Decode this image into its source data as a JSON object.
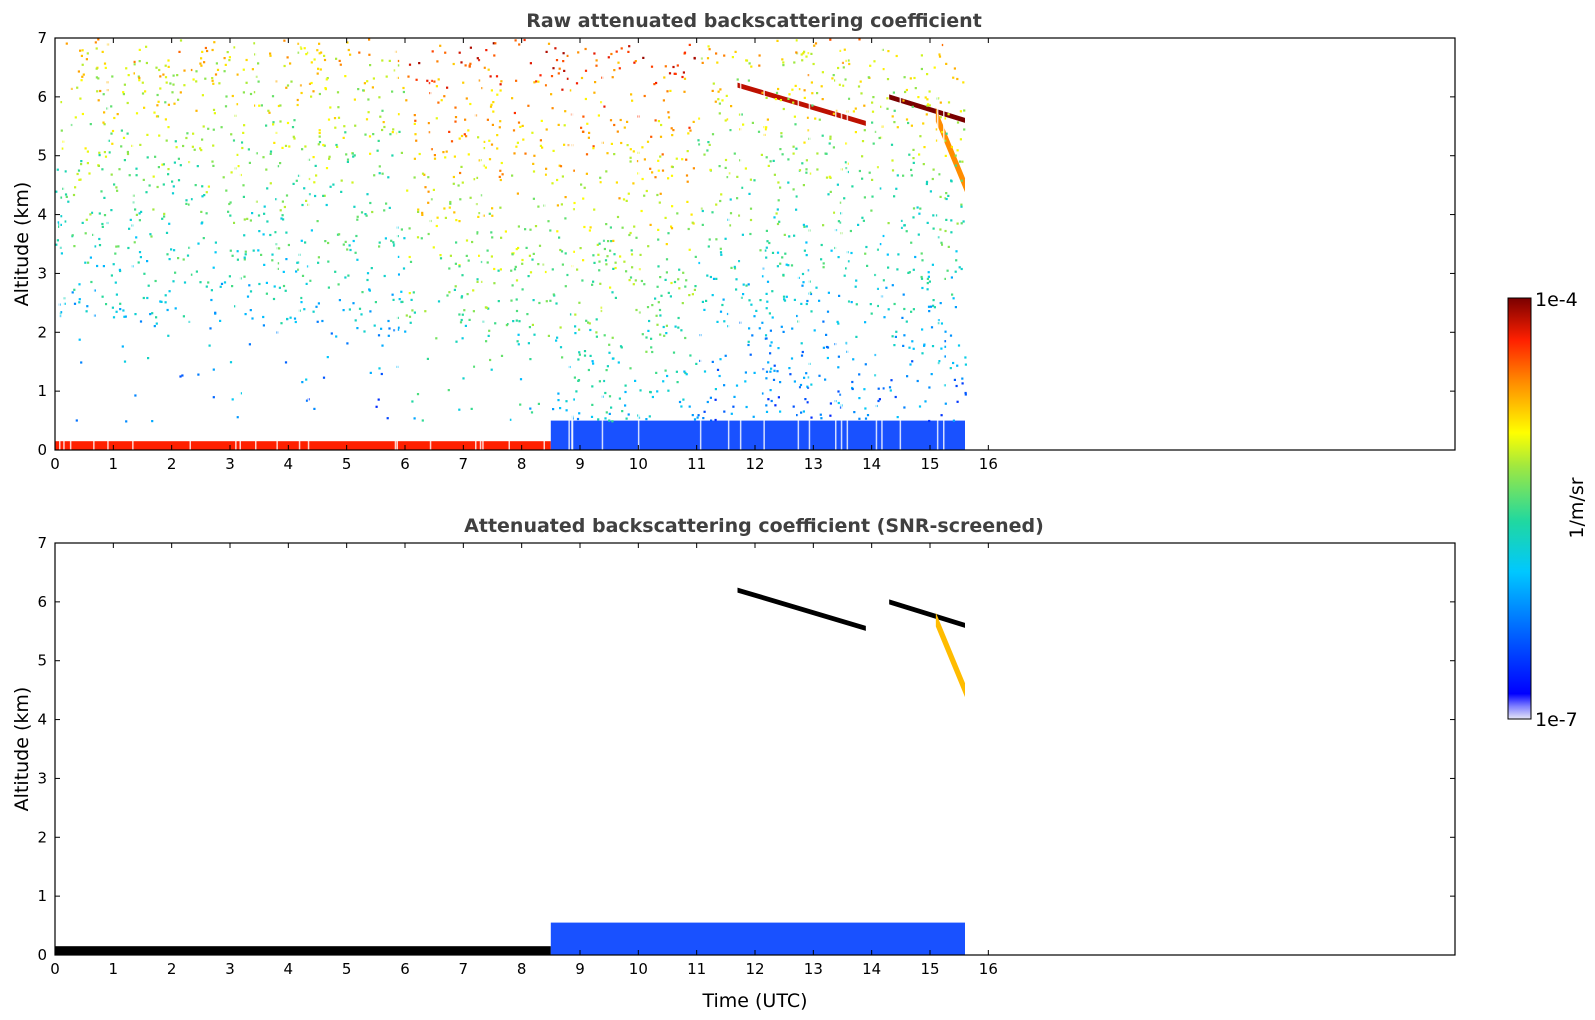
{
  "chart_data": [
    {
      "type": "heatmap",
      "title": "Raw attenuated backscattering coefficient",
      "xlabel": "",
      "ylabel": "Altitude (km)",
      "xlim": [
        0,
        24
      ],
      "ylim": [
        0,
        7
      ],
      "xticks": [
        0,
        1,
        2,
        3,
        4,
        5,
        6,
        7,
        8,
        9,
        10,
        11,
        12,
        13,
        14,
        15,
        16
      ],
      "yticks": [
        0,
        1,
        2,
        3,
        4,
        5,
        6,
        7
      ],
      "data_end_time": 15.6,
      "features": [
        {
          "name": "surface-layer",
          "t": [
            0,
            8.5
          ],
          "z": [
            0,
            0.15
          ],
          "level": 0.9
        },
        {
          "name": "boundary-layer",
          "t": [
            8.5,
            15.6
          ],
          "z": [
            0,
            0.5
          ],
          "level": 0.15
        },
        {
          "name": "cloud-layer-1",
          "t": [
            11.7,
            13.9
          ],
          "z_start": 6.2,
          "z_end": 5.55,
          "level": 0.95
        },
        {
          "name": "cloud-layer-2",
          "t": [
            14.3,
            15.6
          ],
          "z_start": 6.0,
          "z_end": 5.6,
          "level": 1.0
        },
        {
          "name": "fall-streak",
          "t": [
            15.1,
            15.6
          ],
          "z_start": 5.7,
          "z_end": 4.5,
          "level": 0.8
        },
        {
          "name": "upper-noise",
          "t": [
            0,
            15.6
          ],
          "z": [
            0.5,
            7.0
          ],
          "level": 0.55
        }
      ]
    },
    {
      "type": "heatmap",
      "title": "Attenuated backscattering coefficient (SNR-screened)",
      "xlabel": "Time (UTC)",
      "ylabel": "Altitude (km)",
      "xlim": [
        0,
        24
      ],
      "ylim": [
        0,
        7
      ],
      "xticks": [
        0,
        1,
        2,
        3,
        4,
        5,
        6,
        7,
        8,
        9,
        10,
        11,
        12,
        13,
        14,
        15,
        16
      ],
      "yticks": [
        0,
        1,
        2,
        3,
        4,
        5,
        6,
        7
      ],
      "data_end_time": 15.6,
      "features": [
        {
          "name": "surface-layer",
          "t": [
            0,
            8.5
          ],
          "z": [
            0,
            0.15
          ],
          "level": 1.0
        },
        {
          "name": "boundary-layer",
          "t": [
            8.5,
            15.6
          ],
          "z": [
            0,
            0.55
          ],
          "level": 0.15
        },
        {
          "name": "cloud-layer-1",
          "t": [
            11.7,
            13.9
          ],
          "z_start": 6.2,
          "z_end": 5.55,
          "level": 1.0
        },
        {
          "name": "cloud-layer-2",
          "t": [
            14.3,
            15.6
          ],
          "z_start": 6.0,
          "z_end": 5.6,
          "level": 1.0
        },
        {
          "name": "fall-streak",
          "t": [
            15.1,
            15.6
          ],
          "z_start": 5.7,
          "z_end": 4.5,
          "level": 0.75
        }
      ]
    }
  ],
  "colorbar": {
    "label": "1/m/sr",
    "min_label": "1e-7",
    "max_label": "1e-4",
    "colors": [
      "#e6e6f5",
      "#0000ff",
      "#00bfff",
      "#32cd99",
      "#ffff00",
      "#ff8c00",
      "#ff2000",
      "#7a0000"
    ]
  }
}
